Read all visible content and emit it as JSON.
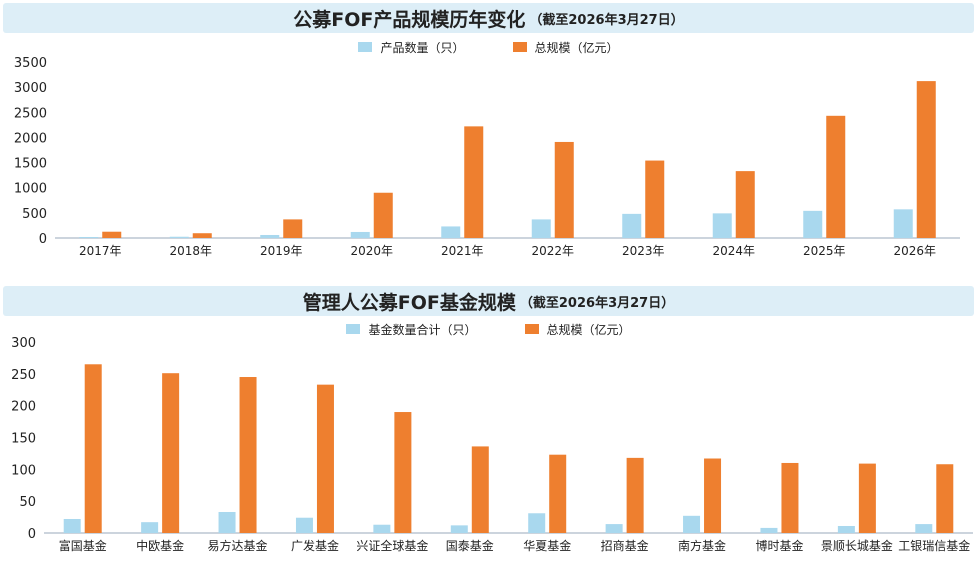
{
  "colors": {
    "count": "#a9d8ee",
    "scale": "#ee7f2f",
    "title_bg": "#ddeef7"
  },
  "charts": [
    {
      "title": "公募FOF产品规模历年变化",
      "subtitle": "（截至2026年3月27日）",
      "legend": [
        "产品数量（只）",
        "总规模（亿元）"
      ]
    },
    {
      "title": "管理人公募FOF基金规模",
      "subtitle": "（截至2026年3月27日）",
      "legend": [
        "基金数量合计（只）",
        "总规模（亿元）"
      ]
    }
  ],
  "chart_data": [
    {
      "type": "bar",
      "title": "公募FOF产品规模历年变化",
      "categories": [
        "2017年",
        "2018年",
        "2019年",
        "2020年",
        "2021年",
        "2022年",
        "2023年",
        "2024年",
        "2025年",
        "2026年"
      ],
      "series": [
        {
          "name": "产品数量（只）",
          "values": [
            20,
            25,
            60,
            120,
            230,
            370,
            480,
            490,
            540,
            570
          ]
        },
        {
          "name": "总规模（亿元）",
          "values": [
            125,
            95,
            370,
            900,
            2220,
            1910,
            1540,
            1330,
            2430,
            3120
          ]
        }
      ],
      "yticks": [
        0,
        500,
        1000,
        1500,
        2000,
        2500,
        3000,
        3500
      ],
      "ylim": [
        0,
        3500
      ]
    },
    {
      "type": "bar",
      "title": "管理人公募FOF基金规模",
      "categories": [
        "富国基金",
        "中欧基金",
        "易方达基金",
        "广发基金",
        "兴证全球基金",
        "国泰基金",
        "华夏基金",
        "招商基金",
        "南方基金",
        "博时基金",
        "景顺长城基金",
        "工银瑞信基金"
      ],
      "series": [
        {
          "name": "基金数量合计（只）",
          "values": [
            22,
            17,
            33,
            24,
            13,
            12,
            31,
            14,
            27,
            8,
            11,
            14
          ]
        },
        {
          "name": "总规模（亿元）",
          "values": [
            265,
            251,
            245,
            233,
            190,
            136,
            123,
            118,
            117,
            110,
            109,
            108
          ]
        }
      ],
      "yticks": [
        0,
        50,
        100,
        150,
        200,
        250,
        300
      ],
      "ylim": [
        0,
        300
      ]
    }
  ]
}
